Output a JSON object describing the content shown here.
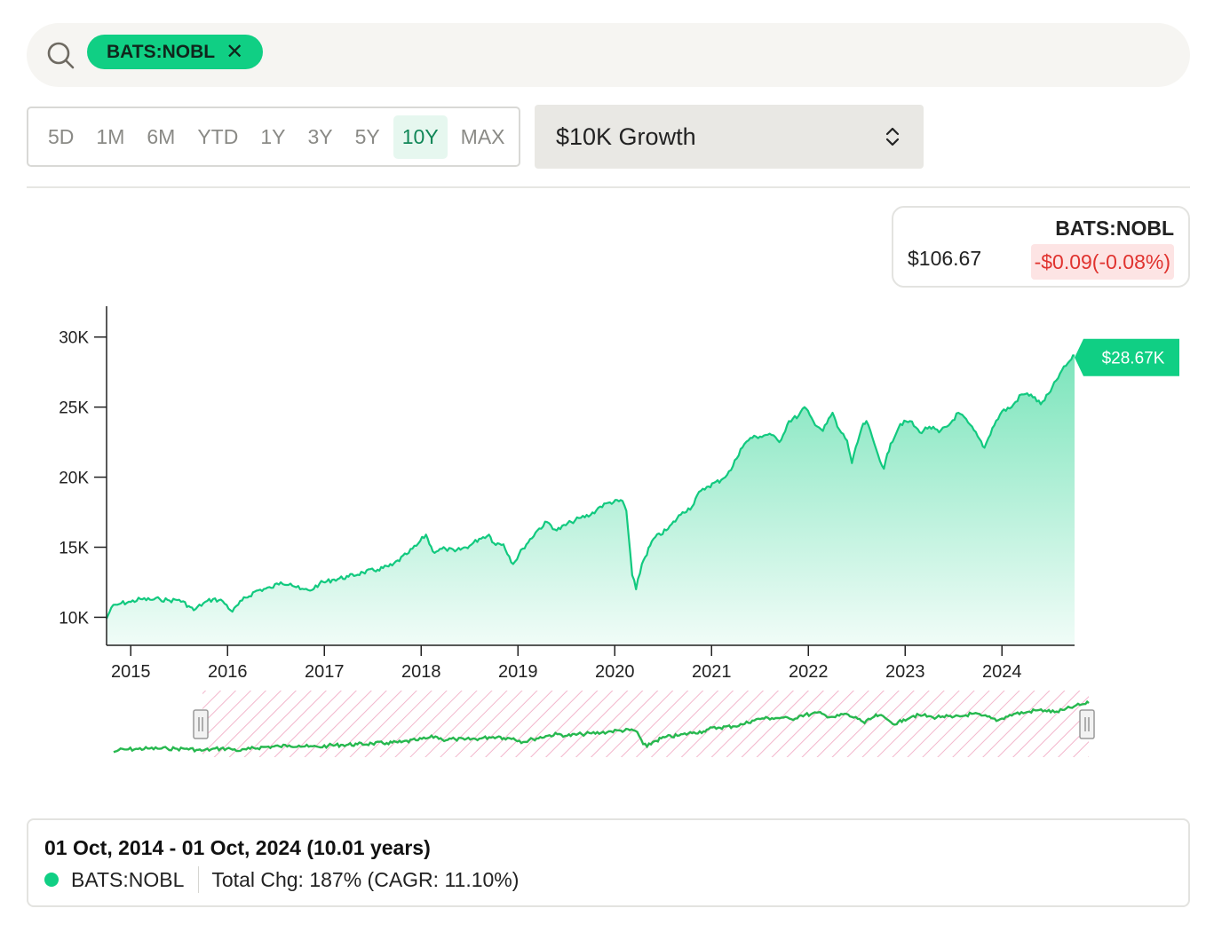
{
  "search": {
    "ticker": "BATS:NOBL",
    "remove_icon": "x-icon"
  },
  "ranges": [
    "5D",
    "1M",
    "6M",
    "YTD",
    "1Y",
    "3Y",
    "5Y",
    "10Y",
    "MAX"
  ],
  "active_range": "10Y",
  "metric": {
    "label": "$10K Growth"
  },
  "price_card": {
    "ticker": "BATS:NOBL",
    "price": "$106.67",
    "change": "-$0.09(-0.08%)"
  },
  "summary": {
    "range": "01 Oct, 2014 - 01 Oct, 2024 (10.01 years)",
    "ticker": "BATS:NOBL",
    "change": "Total Chg: 187% (CAGR: 11.10%)"
  },
  "colors": {
    "accent": "#10cf84",
    "line": "#12c97f",
    "negative": "#e0332f",
    "selection": "#f3b6cc"
  },
  "chart_data": {
    "type": "area",
    "y_tick_labels": [
      "30K",
      "25K",
      "20K",
      "15K",
      "10K"
    ],
    "y_ticks": [
      30000,
      25000,
      20000,
      15000,
      10000
    ],
    "ylim": [
      8000,
      32200
    ],
    "x_tick_labels": [
      "2015",
      "2016",
      "2017",
      "2018",
      "2019",
      "2020",
      "2021",
      "2022",
      "2023",
      "2024"
    ],
    "x_ticks": [
      2015,
      2016,
      2017,
      2018,
      2019,
      2020,
      2021,
      2022,
      2023,
      2024
    ],
    "xlim": [
      2014.75,
      2024.75
    ],
    "last_value_label": "$28.67K",
    "series": [
      {
        "values": [
          [
            2014.75,
            9900
          ],
          [
            2014.8,
            10700
          ],
          [
            2014.9,
            11000
          ],
          [
            2015.0,
            11100
          ],
          [
            2015.1,
            11300
          ],
          [
            2015.2,
            11250
          ],
          [
            2015.3,
            11300
          ],
          [
            2015.4,
            11200
          ],
          [
            2015.5,
            11250
          ],
          [
            2015.6,
            10800
          ],
          [
            2015.65,
            10500
          ],
          [
            2015.75,
            11000
          ],
          [
            2015.85,
            11300
          ],
          [
            2015.95,
            11150
          ],
          [
            2016.05,
            10400
          ],
          [
            2016.15,
            11200
          ],
          [
            2016.3,
            11900
          ],
          [
            2016.45,
            12100
          ],
          [
            2016.55,
            12500
          ],
          [
            2016.65,
            12400
          ],
          [
            2016.75,
            12000
          ],
          [
            2016.85,
            11900
          ],
          [
            2016.95,
            12400
          ],
          [
            2017.1,
            12700
          ],
          [
            2017.25,
            12900
          ],
          [
            2017.4,
            13200
          ],
          [
            2017.55,
            13400
          ],
          [
            2017.7,
            13700
          ],
          [
            2017.85,
            14500
          ],
          [
            2017.95,
            15100
          ],
          [
            2018.05,
            15900
          ],
          [
            2018.12,
            14700
          ],
          [
            2018.25,
            14900
          ],
          [
            2018.35,
            14700
          ],
          [
            2018.5,
            15100
          ],
          [
            2018.6,
            15600
          ],
          [
            2018.7,
            15900
          ],
          [
            2018.75,
            15300
          ],
          [
            2018.85,
            15200
          ],
          [
            2018.95,
            13800
          ],
          [
            2019.05,
            14900
          ],
          [
            2019.2,
            16200
          ],
          [
            2019.3,
            16800
          ],
          [
            2019.4,
            16200
          ],
          [
            2019.55,
            16800
          ],
          [
            2019.65,
            17100
          ],
          [
            2019.75,
            17300
          ],
          [
            2019.85,
            17900
          ],
          [
            2019.95,
            18200
          ],
          [
            2020.08,
            18300
          ],
          [
            2020.12,
            17600
          ],
          [
            2020.18,
            13000
          ],
          [
            2020.22,
            12000
          ],
          [
            2020.28,
            13800
          ],
          [
            2020.4,
            15600
          ],
          [
            2020.55,
            16300
          ],
          [
            2020.7,
            17500
          ],
          [
            2020.8,
            17900
          ],
          [
            2020.85,
            18700
          ],
          [
            2020.95,
            19300
          ],
          [
            2021.1,
            19800
          ],
          [
            2021.2,
            20500
          ],
          [
            2021.3,
            22000
          ],
          [
            2021.4,
            22800
          ],
          [
            2021.5,
            22900
          ],
          [
            2021.6,
            23100
          ],
          [
            2021.7,
            22500
          ],
          [
            2021.8,
            24000
          ],
          [
            2021.9,
            24400
          ],
          [
            2021.96,
            25000
          ],
          [
            2022.05,
            24000
          ],
          [
            2022.15,
            23300
          ],
          [
            2022.25,
            24600
          ],
          [
            2022.3,
            23600
          ],
          [
            2022.4,
            22600
          ],
          [
            2022.45,
            21000
          ],
          [
            2022.55,
            23500
          ],
          [
            2022.6,
            24000
          ],
          [
            2022.7,
            22000
          ],
          [
            2022.78,
            20600
          ],
          [
            2022.85,
            22400
          ],
          [
            2022.95,
            23800
          ],
          [
            2023.05,
            24000
          ],
          [
            2023.15,
            23200
          ],
          [
            2023.25,
            23600
          ],
          [
            2023.35,
            23200
          ],
          [
            2023.45,
            23700
          ],
          [
            2023.55,
            24600
          ],
          [
            2023.65,
            23900
          ],
          [
            2023.75,
            22900
          ],
          [
            2023.82,
            22100
          ],
          [
            2023.9,
            23500
          ],
          [
            2024.0,
            24700
          ],
          [
            2024.1,
            25000
          ],
          [
            2024.2,
            25900
          ],
          [
            2024.3,
            25900
          ],
          [
            2024.4,
            25200
          ],
          [
            2024.5,
            26100
          ],
          [
            2024.6,
            27400
          ],
          [
            2024.7,
            28300
          ],
          [
            2024.75,
            28670
          ]
        ]
      }
    ]
  }
}
